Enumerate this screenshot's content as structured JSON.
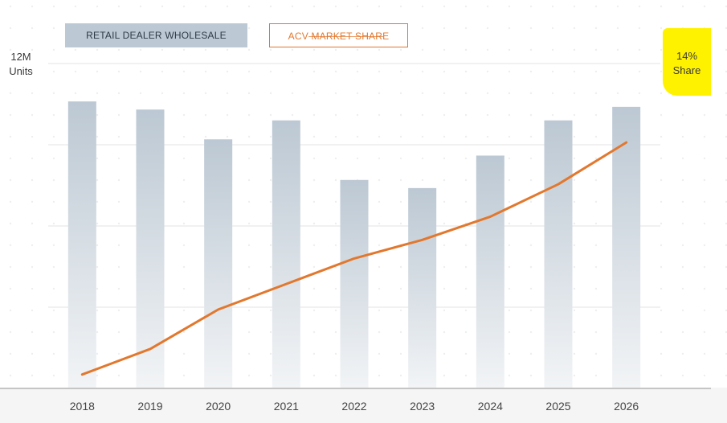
{
  "legend": {
    "bars_label": "RETAIL DEALER WHOLESALE",
    "line_label": "ACV MARKET SHARE"
  },
  "left_axis": {
    "value": "12M",
    "unit": "Units"
  },
  "right_axis": {
    "value": "14%",
    "unit": "Share"
  },
  "chart_data": {
    "type": "bar",
    "categories": [
      "2018",
      "2019",
      "2020",
      "2021",
      "2022",
      "2023",
      "2024",
      "2025",
      "2026"
    ],
    "series": [
      {
        "name": "RETAIL DEALER WHOLESALE",
        "type": "bar",
        "axis": "left",
        "values": [
          10.6,
          10.3,
          9.2,
          9.9,
          7.7,
          7.4,
          8.6,
          9.9,
          10.4
        ]
      },
      {
        "name": "ACV MARKET SHARE",
        "type": "line",
        "axis": "right",
        "values": [
          0.6,
          1.7,
          3.4,
          4.5,
          5.6,
          6.4,
          7.4,
          8.8,
          10.6
        ]
      }
    ],
    "ylim_left": [
      0,
      12
    ],
    "ylim_right": [
      0,
      14
    ],
    "grid": true,
    "colors": {
      "bars": "#bcc8d3",
      "line": "#e2782e"
    }
  }
}
